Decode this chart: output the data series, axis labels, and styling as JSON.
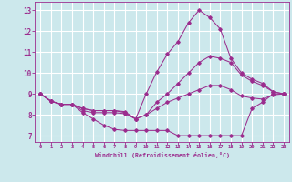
{
  "xlabel": "Windchill (Refroidissement éolien,°C)",
  "background_color": "#cce8ec",
  "grid_color": "#ffffff",
  "line_color": "#9b2d8e",
  "xlim": [
    -0.5,
    23.5
  ],
  "ylim": [
    6.7,
    13.4
  ],
  "xticks": [
    0,
    1,
    2,
    3,
    4,
    5,
    6,
    7,
    8,
    9,
    10,
    11,
    12,
    13,
    14,
    15,
    16,
    17,
    18,
    19,
    20,
    21,
    22,
    23
  ],
  "yticks": [
    7,
    8,
    9,
    10,
    11,
    12,
    13
  ],
  "curves": [
    {
      "x": [
        0,
        1,
        2,
        3,
        4,
        5,
        6,
        7,
        8,
        9,
        10,
        11,
        12,
        13,
        14,
        15,
        16,
        17,
        18,
        19,
        20,
        21,
        22,
        23
      ],
      "y": [
        9.0,
        8.65,
        8.5,
        8.5,
        8.3,
        8.2,
        8.2,
        8.2,
        8.15,
        7.8,
        9.0,
        10.05,
        10.9,
        11.5,
        12.4,
        13.0,
        12.65,
        12.1,
        10.7,
        10.0,
        9.7,
        9.5,
        9.1,
        9.0
      ]
    },
    {
      "x": [
        0,
        1,
        2,
        3,
        4,
        5,
        6,
        7,
        8,
        9,
        10,
        11,
        12,
        13,
        14,
        15,
        16,
        17,
        18,
        19,
        20,
        21,
        22,
        23
      ],
      "y": [
        9.0,
        8.65,
        8.5,
        8.5,
        8.1,
        7.8,
        7.5,
        7.3,
        7.25,
        7.25,
        7.25,
        7.25,
        7.25,
        7.0,
        7.0,
        7.0,
        7.0,
        7.0,
        7.0,
        7.0,
        8.3,
        8.6,
        9.0,
        9.0
      ]
    },
    {
      "x": [
        0,
        1,
        2,
        3,
        4,
        5,
        6,
        7,
        8,
        9,
        10,
        11,
        12,
        13,
        14,
        15,
        16,
        17,
        18,
        19,
        20,
        21,
        22,
        23
      ],
      "y": [
        9.0,
        8.65,
        8.5,
        8.5,
        8.3,
        8.2,
        8.2,
        8.2,
        8.1,
        7.8,
        8.0,
        8.6,
        9.0,
        9.5,
        10.0,
        10.5,
        10.8,
        10.7,
        10.5,
        9.9,
        9.6,
        9.4,
        9.1,
        9.0
      ]
    },
    {
      "x": [
        0,
        1,
        2,
        3,
        4,
        5,
        6,
        7,
        8,
        9,
        10,
        11,
        12,
        13,
        14,
        15,
        16,
        17,
        18,
        19,
        20,
        21,
        22,
        23
      ],
      "y": [
        9.0,
        8.65,
        8.5,
        8.5,
        8.2,
        8.1,
        8.1,
        8.1,
        8.05,
        7.8,
        8.0,
        8.3,
        8.6,
        8.8,
        9.0,
        9.2,
        9.4,
        9.4,
        9.2,
        8.9,
        8.8,
        8.75,
        8.95,
        9.0
      ]
    }
  ]
}
